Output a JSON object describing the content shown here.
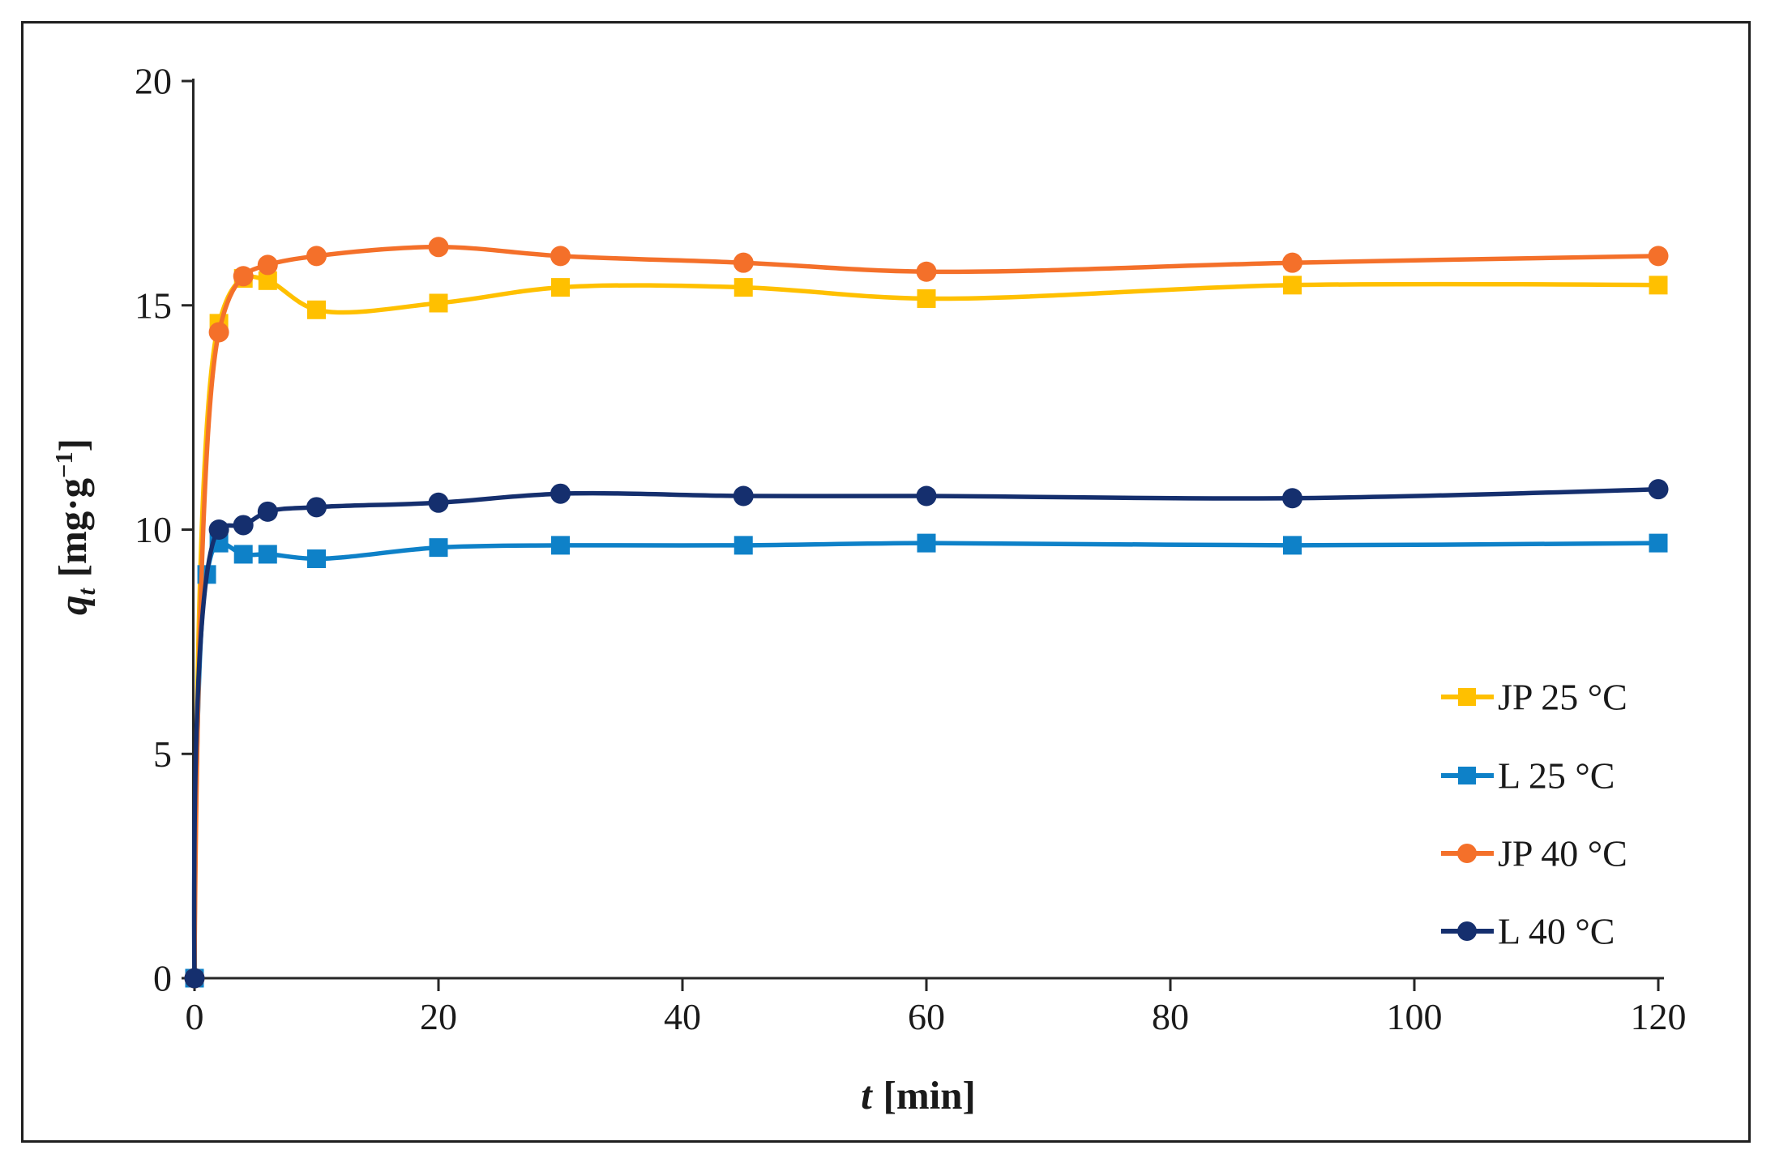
{
  "figure": {
    "background": "#ffffff",
    "frame_color": "#1f1f1f",
    "axis_color": "#262626",
    "text_color": "#1a1a1a"
  },
  "chart_data": {
    "type": "line",
    "title": "",
    "xlabel_var": "t",
    "xlabel_unit": "[min]",
    "ylabel_var": "q",
    "ylabel_sub": "t",
    "ylabel_unit_pre": "[mg·g",
    "ylabel_sup": "−1",
    "ylabel_unit_post": "]",
    "xlim": [
      0,
      120
    ],
    "ylim": [
      0,
      20
    ],
    "x_ticks": [
      0,
      20,
      40,
      60,
      80,
      100,
      120
    ],
    "y_ticks": [
      0,
      5,
      10,
      15,
      20
    ],
    "grid": false,
    "legend_position": "inside-lower-right",
    "series": [
      {
        "name": "JP 25 °C",
        "marker": "square",
        "color": "#FFC000",
        "x": [
          0,
          2,
          4,
          6,
          10,
          20,
          30,
          45,
          60,
          90,
          120
        ],
        "y": [
          0,
          14.6,
          15.6,
          15.55,
          14.9,
          15.05,
          15.4,
          15.4,
          15.15,
          15.45,
          15.45
        ]
      },
      {
        "name": "L 25 °C",
        "marker": "square",
        "color": "#0E81C8",
        "x": [
          0,
          1,
          2,
          4,
          6,
          10,
          20,
          30,
          45,
          60,
          90,
          120
        ],
        "y": [
          0,
          9.0,
          9.7,
          9.45,
          9.45,
          9.35,
          9.6,
          9.65,
          9.65,
          9.7,
          9.65,
          9.7
        ]
      },
      {
        "name": "JP 40 °C",
        "marker": "circle",
        "color": "#F4702A",
        "x": [
          0,
          2,
          4,
          6,
          10,
          20,
          30,
          45,
          60,
          90,
          120
        ],
        "y": [
          0,
          14.4,
          15.65,
          15.9,
          16.1,
          16.3,
          16.1,
          15.95,
          15.75,
          15.95,
          16.1
        ]
      },
      {
        "name": "L 40 °C",
        "marker": "circle",
        "color": "#152F6E",
        "x": [
          0,
          2,
          4,
          6,
          10,
          20,
          30,
          45,
          60,
          90,
          120
        ],
        "y": [
          0,
          10.0,
          10.1,
          10.4,
          10.5,
          10.6,
          10.8,
          10.75,
          10.75,
          10.7,
          10.9
        ]
      }
    ]
  }
}
